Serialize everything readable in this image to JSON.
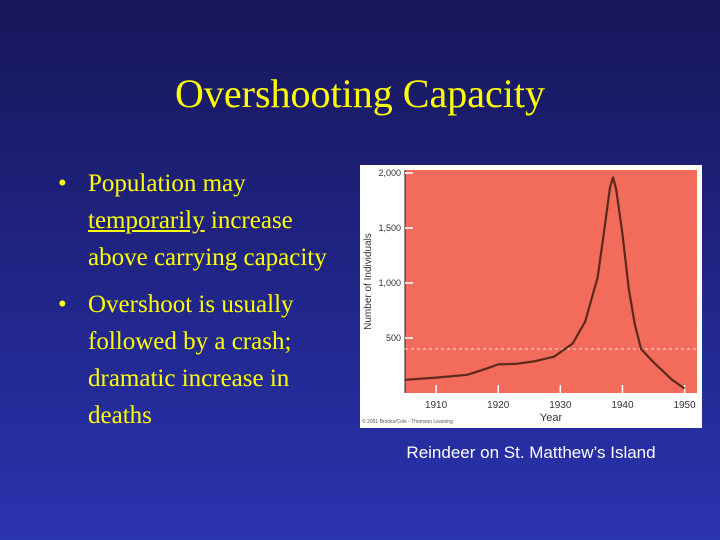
{
  "slide": {
    "title": "Overshooting Capacity",
    "bullets": [
      {
        "marker": "•",
        "lines": [
          {
            "pre": "Population may ",
            "u": "temporarily",
            "post": " increase above carrying capacity"
          }
        ]
      },
      {
        "marker": "•",
        "lines": [
          {
            "pre": "Overshoot is usually followed by a crash; dramatic increase in deaths",
            "u": "",
            "post": ""
          }
        ]
      }
    ],
    "caption": "Reindeer on St. Matthew’s Island"
  },
  "colors": {
    "title": "#ffff00",
    "plot_bg": "#f26b5b",
    "line": "#5a2a1a"
  },
  "chart_data": {
    "type": "line",
    "xlabel": "Year",
    "ylabel": "Number of Individuals",
    "xlim": [
      1905,
      1952
    ],
    "ylim": [
      0,
      2000
    ],
    "xticks": [
      "1910",
      "1920",
      "1930",
      "1940",
      "1950"
    ],
    "yticks": [
      "500",
      "1,000",
      "1,500",
      "2,000"
    ],
    "credit": "© 2001 Brooks/Cole - Thomson Learning",
    "carrying_capacity": 400,
    "series": [
      {
        "x": [
          1905,
          1910,
          1915,
          1918,
          1920,
          1923,
          1926,
          1929,
          1932,
          1934,
          1936,
          1937,
          1938,
          1938.5,
          1939,
          1940,
          1941,
          1942,
          1943,
          1945,
          1948,
          1950
        ],
        "y": [
          120,
          140,
          165,
          220,
          260,
          265,
          290,
          330,
          450,
          650,
          1050,
          1450,
          1870,
          1960,
          1850,
          1450,
          950,
          620,
          400,
          280,
          120,
          40
        ]
      }
    ]
  }
}
